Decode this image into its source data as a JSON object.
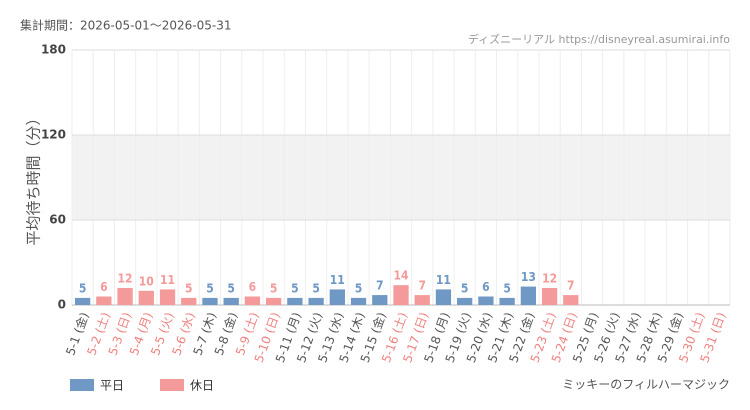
{
  "chart_data": {
    "type": "bar",
    "period": "集計期間：2026-05-01～2026-05-31",
    "source": "ディズニーリアル https://disneyreal.asumirai.info",
    "attraction": "ミッキーのフィルハーマジック",
    "y_label": "平均待ち時間（分）",
    "categories": [
      "5-1 (金)",
      "5-2 (土)",
      "5-3 (日)",
      "5-4 (月)",
      "5-5 (火)",
      "5-6 (水)",
      "5-7 (木)",
      "5-8 (金)",
      "5-9 (土)",
      "5-10 (日)",
      "5-11 (月)",
      "5-12 (火)",
      "5-13 (水)",
      "5-14 (木)",
      "5-15 (金)",
      "5-16 (土)",
      "5-17 (日)",
      "5-18 (月)",
      "5-19 (火)",
      "5-20 (水)",
      "5-21 (木)",
      "5-22 (金)",
      "5-23 (土)",
      "5-24 (日)",
      "5-25 (月)",
      "5-26 (火)",
      "5-27 (水)",
      "5-28 (木)",
      "5-29 (金)",
      "5-30 (土)",
      "5-31 (日)"
    ],
    "category_label_colors": [
      "#555",
      "#f08080",
      "#f08080",
      "#f08080",
      "#f08080",
      "#f08080",
      "#555",
      "#555",
      "#f08080",
      "#f08080",
      "#555",
      "#555",
      "#555",
      "#555",
      "#555",
      "#f08080",
      "#f08080",
      "#555",
      "#555",
      "#555",
      "#555",
      "#555",
      "#f08080",
      "#f08080",
      "#555",
      "#555",
      "#555",
      "#555",
      "#555",
      "#f08080",
      "#f08080"
    ],
    "series": [
      {
        "name": "平日",
        "color": "#6f98c4",
        "values": [
          5,
          null,
          null,
          null,
          null,
          null,
          5,
          5,
          null,
          null,
          5,
          5,
          11,
          5,
          7,
          null,
          null,
          11,
          5,
          6,
          5,
          13,
          null,
          null,
          null,
          null,
          null,
          null,
          null,
          null,
          null
        ]
      },
      {
        "name": "休日",
        "color": "#f59a9a",
        "values": [
          null,
          6,
          12,
          10,
          11,
          5,
          null,
          null,
          6,
          5,
          null,
          null,
          null,
          null,
          null,
          14,
          7,
          null,
          null,
          null,
          null,
          null,
          12,
          7,
          null,
          null,
          null,
          null,
          null,
          null,
          null
        ]
      }
    ],
    "ylim": [
      0,
      180
    ],
    "yticks": [
      0,
      60,
      120,
      180
    ],
    "grid": true
  }
}
